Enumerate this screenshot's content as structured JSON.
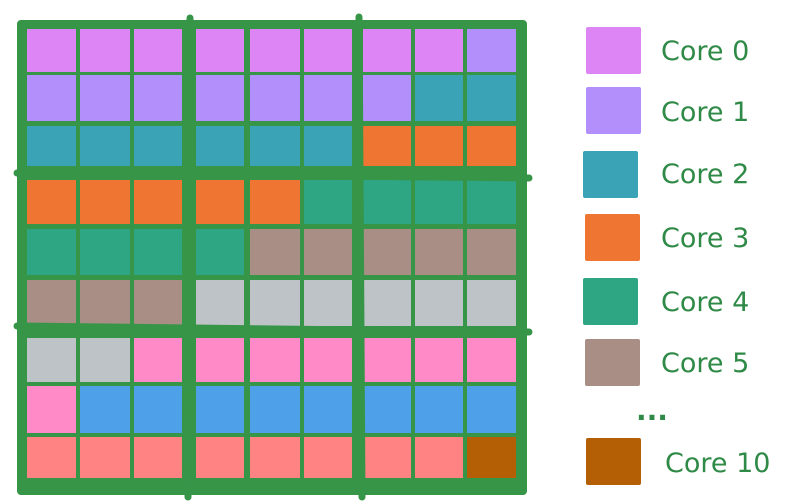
{
  "cores": [
    {
      "id": 0,
      "label": "Core 0",
      "color": "#dd85f5"
    },
    {
      "id": 1,
      "label": "Core 1",
      "color": "#b38ffb"
    },
    {
      "id": 2,
      "label": "Core 2",
      "color": "#3aa3b5"
    },
    {
      "id": 3,
      "label": "Core 3",
      "color": "#ef7533"
    },
    {
      "id": 4,
      "label": "Core 4",
      "color": "#2ea583"
    },
    {
      "id": 5,
      "label": "Core 5",
      "color": "#a88e84"
    },
    {
      "id": 6,
      "label": "",
      "color": "#bdc3c6"
    },
    {
      "id": 7,
      "label": "",
      "color": "#ff8ac7"
    },
    {
      "id": 8,
      "label": "",
      "color": "#4ea0e8"
    },
    {
      "id": 9,
      "label": "",
      "color": "#ff8383"
    },
    {
      "id": 10,
      "label": "Core 10",
      "color": "#b45f05"
    }
  ],
  "legend": {
    "entries": [
      0,
      1,
      2,
      3,
      4,
      5
    ],
    "ellipsis": "...",
    "last_entry": 10
  },
  "grid": {
    "rows": 9,
    "cols": 9,
    "border_color": "#379548",
    "assignment": [
      [
        0,
        0,
        0,
        0,
        0,
        0,
        0,
        0,
        1
      ],
      [
        1,
        1,
        1,
        1,
        1,
        1,
        1,
        2,
        2
      ],
      [
        2,
        2,
        2,
        2,
        2,
        2,
        3,
        3,
        3
      ],
      [
        3,
        3,
        3,
        3,
        3,
        4,
        4,
        4,
        4
      ],
      [
        4,
        4,
        4,
        4,
        5,
        5,
        5,
        5,
        5
      ],
      [
        5,
        5,
        5,
        6,
        6,
        6,
        6,
        6,
        6
      ],
      [
        6,
        6,
        7,
        7,
        7,
        7,
        7,
        7,
        7
      ],
      [
        7,
        8,
        8,
        8,
        8,
        8,
        8,
        8,
        8
      ],
      [
        9,
        9,
        9,
        9,
        9,
        9,
        9,
        9,
        10
      ]
    ]
  }
}
